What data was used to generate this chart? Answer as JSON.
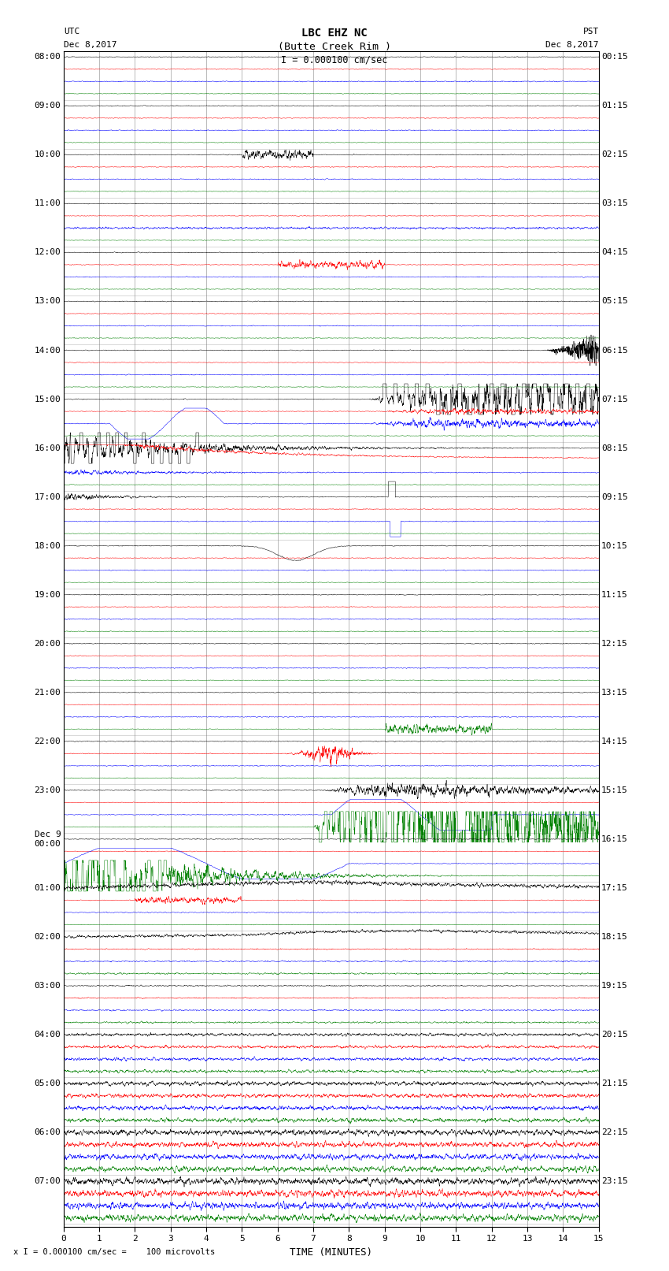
{
  "title_line1": "LBC EHZ NC",
  "title_line2": "(Butte Creek Rim )",
  "scale_text": "I = 0.000100 cm/sec",
  "left_label_line1": "UTC",
  "left_label_line2": "Dec 8,2017",
  "right_label_line1": "PST",
  "right_label_line2": "Dec 8,2017",
  "bottom_label": "TIME (MINUTES)",
  "footnote": "x I = 0.000100 cm/sec =    100 microvolts",
  "utc_times": [
    "08:00",
    "09:00",
    "10:00",
    "11:00",
    "12:00",
    "13:00",
    "14:00",
    "15:00",
    "16:00",
    "17:00",
    "18:00",
    "19:00",
    "20:00",
    "21:00",
    "22:00",
    "23:00",
    "Dec 9\n00:00",
    "01:00",
    "02:00",
    "03:00",
    "04:00",
    "05:00",
    "06:00",
    "07:00"
  ],
  "pst_times": [
    "00:15",
    "01:15",
    "02:15",
    "03:15",
    "04:15",
    "05:15",
    "06:15",
    "07:15",
    "08:15",
    "09:15",
    "10:15",
    "11:15",
    "12:15",
    "13:15",
    "14:15",
    "15:15",
    "16:15",
    "17:15",
    "18:15",
    "19:15",
    "20:15",
    "21:15",
    "22:15",
    "23:15"
  ],
  "num_hours": 24,
  "traces_per_hour": 4,
  "background_color": "#ffffff",
  "grid_color": "#777777",
  "trace_colors": [
    "black",
    "red",
    "blue",
    "green"
  ],
  "xlabel_fontsize": 9,
  "title_fontsize": 10,
  "tick_fontsize": 8,
  "label_fontsize": 8
}
